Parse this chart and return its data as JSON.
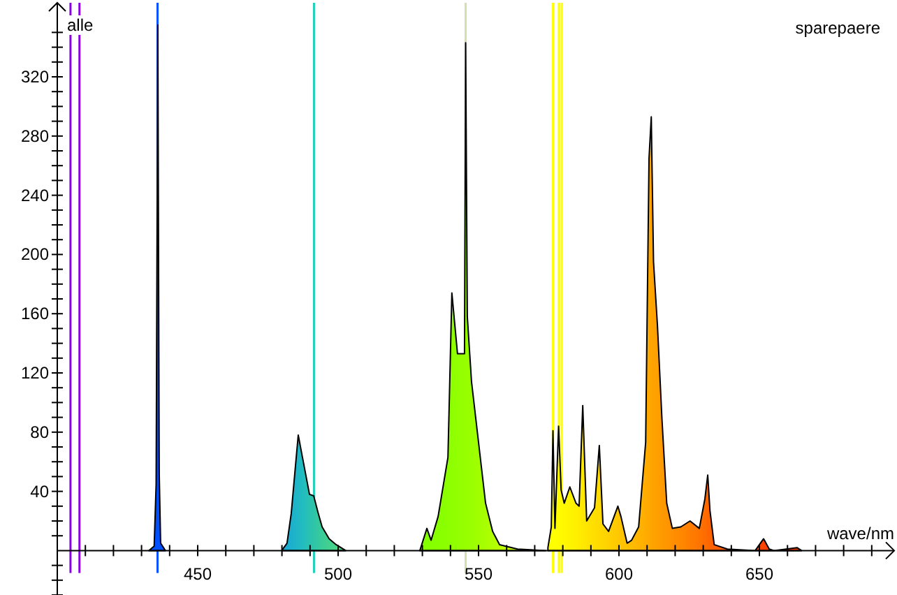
{
  "chart_data": {
    "type": "area",
    "title": "sparepaere",
    "ylabel": "alle",
    "xlabel": "wave/nm",
    "xlim": [
      400,
      698
    ],
    "ylim": [
      -30,
      370
    ],
    "xticks": [
      {
        "value": 410,
        "label": null
      },
      {
        "value": 420,
        "label": null
      },
      {
        "value": 430,
        "label": null
      },
      {
        "value": 440,
        "label": null
      },
      450,
      {
        "value": 460,
        "label": null
      },
      {
        "value": 470,
        "label": null
      },
      {
        "value": 480,
        "label": null
      },
      {
        "value": 490,
        "label": null
      },
      500,
      {
        "value": 510,
        "label": null
      },
      {
        "value": 520,
        "label": null
      },
      {
        "value": 530,
        "label": null
      },
      {
        "value": 540,
        "label": null
      },
      550,
      {
        "value": 560,
        "label": null
      },
      {
        "value": 570,
        "label": null
      },
      {
        "value": 580,
        "label": null
      },
      {
        "value": 590,
        "label": null
      },
      600,
      {
        "value": 610,
        "label": null
      },
      {
        "value": 620,
        "label": null
      },
      {
        "value": 630,
        "label": null
      },
      {
        "value": 640,
        "label": null
      },
      650,
      {
        "value": 660,
        "label": null
      },
      {
        "value": 670,
        "label": null
      },
      {
        "value": 680,
        "label": null
      },
      {
        "value": 690,
        "label": null
      }
    ],
    "yticks": [
      {
        "value": -30,
        "label": null
      },
      {
        "value": -20,
        "label": null
      },
      {
        "value": -10,
        "label": null
      },
      {
        "value": 10,
        "label": null
      },
      {
        "value": 20,
        "label": null
      },
      {
        "value": 30,
        "label": null
      },
      40,
      {
        "value": 50,
        "label": null
      },
      {
        "value": 60,
        "label": null
      },
      {
        "value": 70,
        "label": null
      },
      80,
      {
        "value": 90,
        "label": null
      },
      {
        "value": 100,
        "label": null
      },
      {
        "value": 110,
        "label": null
      },
      120,
      {
        "value": 130,
        "label": null
      },
      {
        "value": 140,
        "label": null
      },
      {
        "value": 150,
        "label": null
      },
      160,
      {
        "value": 170,
        "label": null
      },
      {
        "value": 180,
        "label": null
      },
      {
        "value": 190,
        "label": null
      },
      200,
      {
        "value": 210,
        "label": null
      },
      {
        "value": 220,
        "label": null
      },
      {
        "value": 230,
        "label": null
      },
      240,
      {
        "value": 250,
        "label": null
      },
      {
        "value": 260,
        "label": null
      },
      {
        "value": 270,
        "label": null
      },
      280,
      {
        "value": 290,
        "label": null
      },
      {
        "value": 300,
        "label": null
      },
      {
        "value": 310,
        "label": null
      },
      320,
      {
        "value": 330,
        "label": null
      },
      {
        "value": 340,
        "label": null
      },
      {
        "value": 350,
        "label": null
      }
    ],
    "ref_lines": [
      {
        "axis": "x",
        "value": 404.7,
        "color": "#8a00e6"
      },
      {
        "axis": "x",
        "value": 407.9,
        "color": "#8a00e6"
      },
      {
        "axis": "x",
        "value": 435.7,
        "color": "#0050ff"
      },
      {
        "axis": "x",
        "value": 491.4,
        "color": "#20d0b8"
      },
      {
        "axis": "x",
        "value": 545.4,
        "color": "#d0e0b0"
      },
      {
        "axis": "x",
        "value": 576.5,
        "color": "#ffff00"
      },
      {
        "axis": "x",
        "value": 578.6,
        "color": "#ffff00"
      },
      {
        "axis": "x",
        "value": 579.6,
        "color": "#ffff00"
      }
    ],
    "series": [
      {
        "x": [
          432.6,
          434.5,
          435.2,
          435.8,
          436.3,
          436.8,
          438.5
        ],
        "values": [
          0,
          3,
          45,
          355,
          52,
          5,
          0
        ],
        "colors": [
          "#0050ff",
          "#0050ff",
          "#0050ff",
          "#0050ff",
          "#0050ff",
          "#0050ff",
          "#0050ff"
        ]
      },
      {
        "x": [
          479.9,
          481.8,
          483.3,
          484.8,
          485.8,
          487.3,
          488.8,
          489.8,
          491.3,
          492.8,
          494.3,
          496.8,
          499.3,
          502.7
        ],
        "values": [
          0,
          5,
          25,
          57,
          78,
          63,
          48,
          38,
          37,
          26,
          16,
          8,
          4,
          0
        ],
        "colors": [
          "#18a8d0",
          "#1aacd0",
          "#1cb0cc",
          "#1eb4c8",
          "#20b8c4",
          "#22bcc0",
          "#26c0b8",
          "#2ac2b0",
          "#2ec4a8",
          "#34c8a0",
          "#3acc98",
          "#42d090",
          "#4ad488",
          "#56d880"
        ]
      },
      {
        "x": [
          529.1,
          531.6,
          533.1,
          535.6,
          539.1,
          540.5,
          542.5,
          545,
          545.4,
          546,
          547.5,
          550,
          552.5,
          555,
          557.5,
          563.9,
          573.9
        ],
        "values": [
          0,
          15,
          7,
          23,
          63,
          174,
          133,
          133,
          343,
          158,
          114,
          73,
          32,
          13,
          4,
          1,
          0
        ],
        "colors": [
          "#80ff00",
          "#84ff00",
          "#86ff00",
          "#88ff00",
          "#8cff00",
          "#8eff00",
          "#92ff00",
          "#96ff00",
          "#96ff00",
          "#98ff00",
          "#9aff00",
          "#a0ff00",
          "#a8ff00",
          "#b0ff00",
          "#b8ff00",
          "#d0ff00",
          "#f0ff00"
        ]
      },
      {
        "x": [
          574.7,
          575.9,
          576.5,
          577.2,
          578.5,
          579.4,
          580.5,
          582.5,
          584.7,
          585.8,
          587.1,
          588.5,
          591.3,
          593,
          594.3,
          596.3,
          599.6,
          600.7,
          602.9,
          604.5,
          607,
          609.5,
          610.7,
          611.5,
          612.3,
          613.7,
          615.3,
          617,
          619,
          622,
          625.3,
          628.6,
          630.6,
          631.6,
          632.4,
          633.9,
          638.6,
          648.5,
          651.5,
          653.5,
          655.2,
          663.4,
          665
        ],
        "values": [
          2,
          16,
          81,
          15,
          84,
          41,
          32,
          43,
          32,
          30,
          98,
          20,
          29,
          71,
          18,
          13,
          30,
          23,
          5,
          7,
          16,
          73,
          265,
          293,
          195,
          152,
          89,
          32,
          15,
          16,
          20,
          15,
          35,
          51,
          27,
          4,
          1,
          0,
          8,
          1,
          0,
          2,
          0
        ],
        "colors": [
          "#ffff00",
          "#ffff00",
          "#ffff00",
          "#ffff00",
          "#fffc00",
          "#fffa00",
          "#fff800",
          "#fff400",
          "#fff000",
          "#ffec00",
          "#ffe800",
          "#ffe400",
          "#ffde00",
          "#ffda00",
          "#ffd600",
          "#ffd000",
          "#ffc800",
          "#ffc400",
          "#ffc000",
          "#ffbc00",
          "#ffb400",
          "#ffac00",
          "#ffa800",
          "#ffa400",
          "#ffa200",
          "#ffa000",
          "#ff9a00",
          "#ff9600",
          "#ff9000",
          "#ff8800",
          "#ff7e00",
          "#ff7400",
          "#ff6c00",
          "#ff6800",
          "#ff6400",
          "#ff6000",
          "#ff5800",
          "#ff4800",
          "#ff4400",
          "#ff4000",
          "#ff4000",
          "#ff3800",
          "#ff3800"
        ]
      }
    ]
  }
}
